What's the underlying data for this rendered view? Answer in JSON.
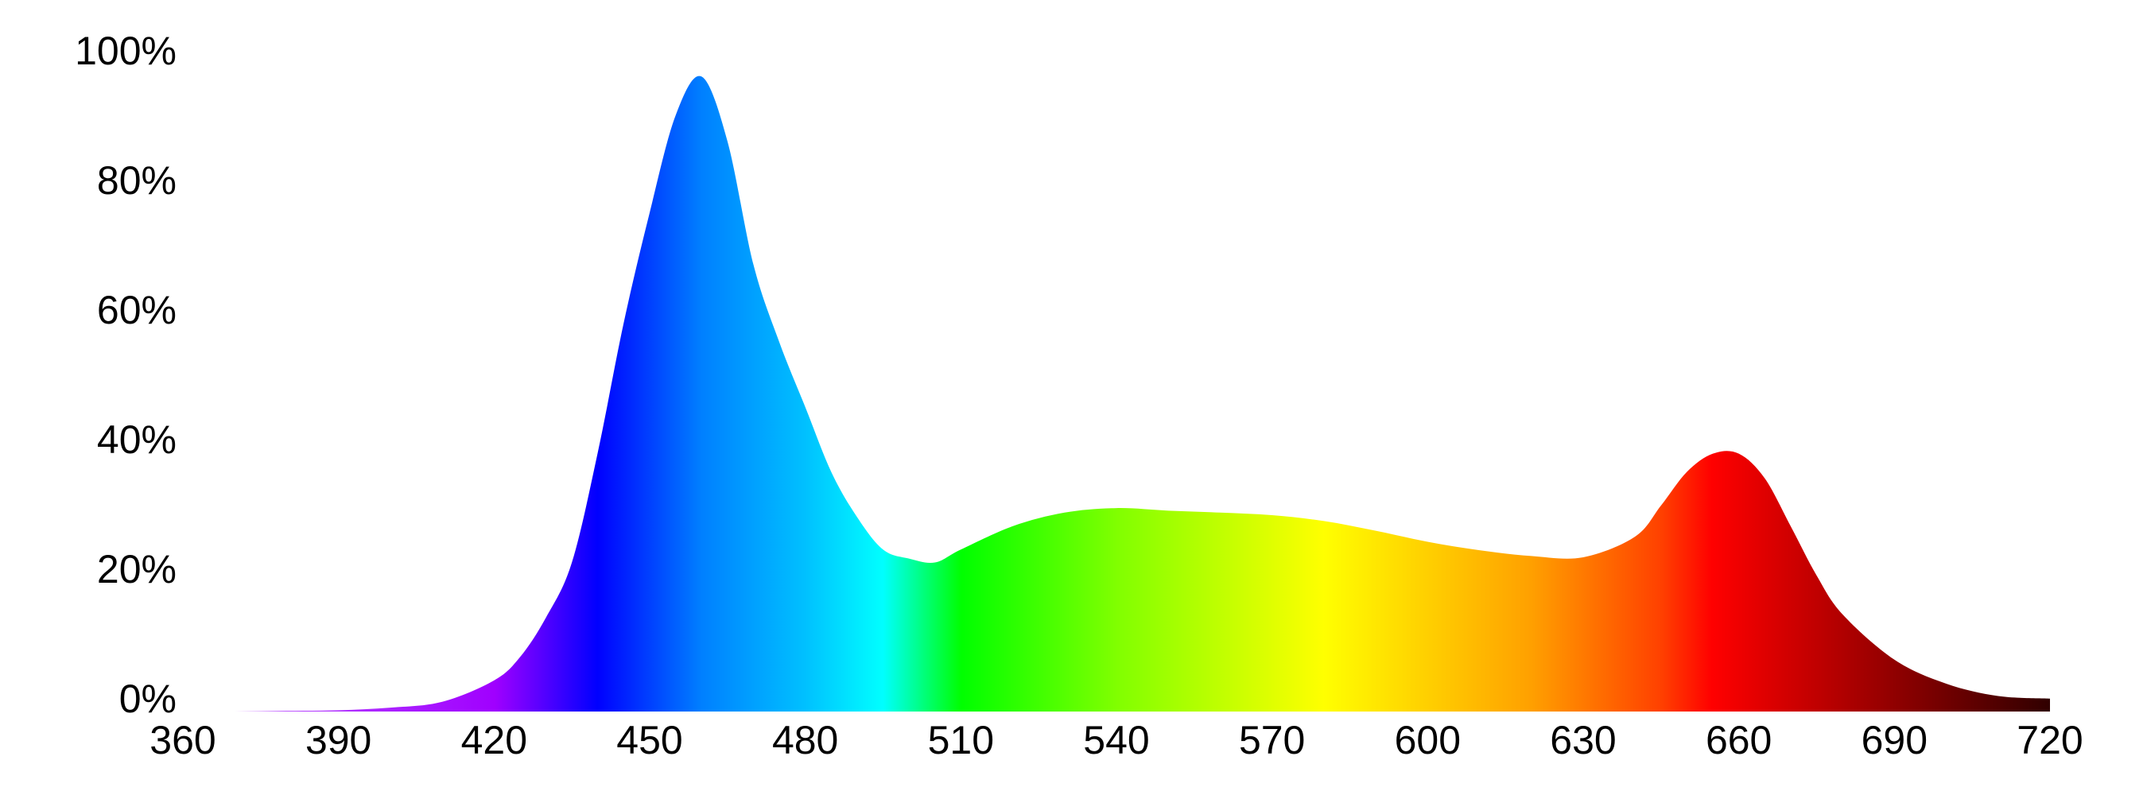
{
  "chart_data": {
    "type": "area",
    "x": [
      360,
      370,
      380,
      390,
      400,
      410,
      420,
      425,
      430,
      435,
      440,
      445,
      450,
      455,
      460,
      465,
      470,
      475,
      480,
      485,
      490,
      495,
      500,
      505,
      510,
      520,
      530,
      540,
      550,
      560,
      570,
      580,
      590,
      600,
      610,
      620,
      630,
      640,
      645,
      650,
      655,
      660,
      665,
      670,
      675,
      680,
      690,
      700,
      710,
      720
    ],
    "values": [
      0,
      0,
      0.1,
      0.2,
      0.6,
      1.5,
      4.8,
      8.4,
      14.5,
      23,
      40,
      60,
      77,
      92,
      98,
      88,
      69,
      57,
      47,
      37,
      30,
      25,
      23.6,
      23,
      25,
      28.6,
      30.7,
      31.4,
      31,
      30.7,
      30.3,
      29.4,
      27.9,
      26.2,
      24.9,
      24,
      23.8,
      27,
      31.8,
      37,
      39.8,
      39.8,
      36,
      28.6,
      21,
      15,
      8,
      4.3,
      2.4,
      2
    ],
    "xlim": [
      360,
      720
    ],
    "xticks": [
      360,
      390,
      420,
      450,
      480,
      510,
      540,
      570,
      600,
      630,
      660,
      690,
      720
    ],
    "ylim": [
      0,
      100
    ],
    "yticks": [
      {
        "value": 0,
        "label": "0%"
      },
      {
        "value": 20,
        "label": "20%"
      },
      {
        "value": 40,
        "label": "40%"
      },
      {
        "value": 60,
        "label": "60%"
      },
      {
        "value": 80,
        "label": "80%"
      },
      {
        "value": 100,
        "label": "100%"
      }
    ],
    "grid": false
  }
}
